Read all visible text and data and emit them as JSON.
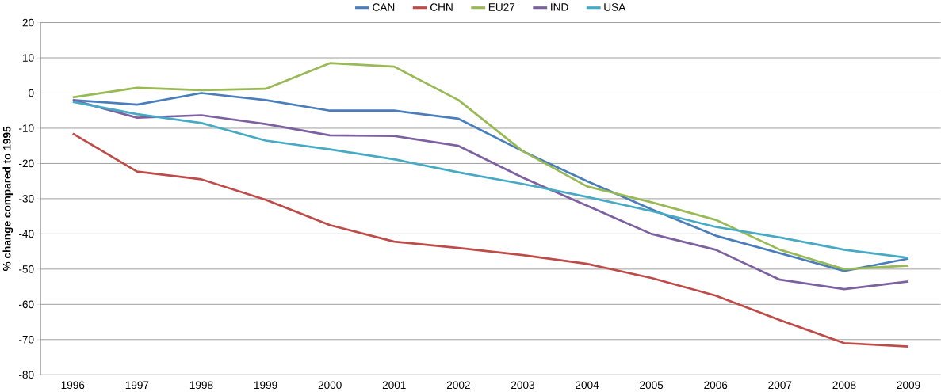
{
  "chart_data": {
    "type": "line",
    "ylabel": "% change compared to 1995",
    "categories": [
      "1996",
      "1997",
      "1998",
      "1999",
      "2000",
      "2001",
      "2002",
      "2003",
      "2004",
      "2005",
      "2006",
      "2007",
      "2008",
      "2009"
    ],
    "series": [
      {
        "name": "CAN",
        "color": "#4a7ebb",
        "values": [
          -2,
          -3.3,
          0,
          -2,
          -5,
          -5,
          -7.3,
          -16.5,
          -25,
          -33,
          -40.5,
          -45.5,
          -50.5,
          -47
        ]
      },
      {
        "name": "CHN",
        "color": "#be4b48",
        "values": [
          -11.5,
          -22.3,
          -24.5,
          -30.3,
          -37.5,
          -42.2,
          -44,
          -46,
          -48.5,
          -52.5,
          -57.5,
          -64.5,
          -71,
          -72
        ]
      },
      {
        "name": "EU27",
        "color": "#98b954",
        "values": [
          -1.2,
          1.5,
          0.8,
          1.2,
          8.5,
          7.5,
          -2,
          -16.5,
          -26.5,
          -31,
          -36,
          -44.5,
          -50,
          -49
        ]
      },
      {
        "name": "IND",
        "color": "#7d60a0",
        "values": [
          -2,
          -7,
          -6.3,
          -8.8,
          -12,
          -12.2,
          -15,
          -24,
          -32,
          -40,
          -44.5,
          -53,
          -55.7,
          -53.5
        ]
      },
      {
        "name": "USA",
        "color": "#46aac5",
        "values": [
          -2.5,
          -6,
          -8.5,
          -13.5,
          -16,
          -18.8,
          -22.5,
          -25.8,
          -29.5,
          -33.5,
          -38,
          -41,
          -44.5,
          -46.8
        ]
      }
    ],
    "ylim": [
      -80,
      20
    ],
    "yticks": [
      -80,
      -70,
      -60,
      -50,
      -40,
      -30,
      -20,
      -10,
      0,
      10,
      20
    ],
    "grid": "y",
    "legend": "top",
    "marker": "none",
    "line_style": "solid"
  }
}
